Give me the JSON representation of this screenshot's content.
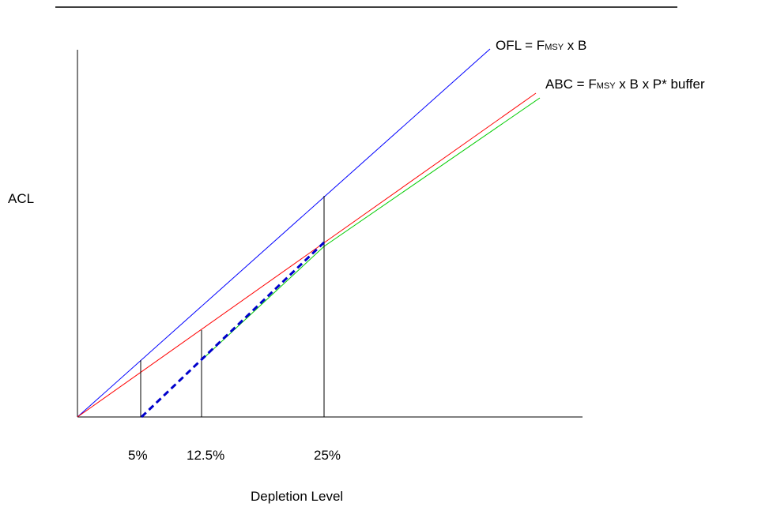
{
  "labels": {
    "ofl": {
      "prefix": "OFL = F",
      "sub": "MSY",
      "suffix": " x B"
    },
    "abc": {
      "prefix": "ABC = F",
      "sub": "MSY",
      "suffix": " x B x P* buffer"
    },
    "y_axis": "ACL",
    "x_axis": "Depletion Level",
    "ticks": [
      "5%",
      "12.5%",
      "25%"
    ]
  },
  "colors": {
    "ofl_line": "#0000ff",
    "abc_line": "#ff0000",
    "control_rule_line": "#00cc00",
    "dashed_rule": "#0000cc",
    "axis": "#000000"
  }
}
